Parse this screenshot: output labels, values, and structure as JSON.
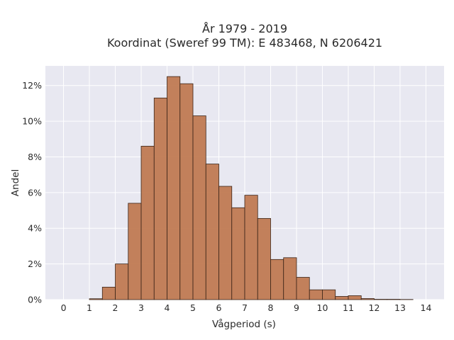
{
  "chart_data": {
    "type": "bar",
    "title_line1": "År 1979 - 2019",
    "title_line2": "Koordinat (Sweref 99 TM): E 483468, N 6206421",
    "xlabel": "Vågperiod (s)",
    "ylabel": "Andel",
    "bin_width": 0.5,
    "xlim": [
      -0.7,
      14.7
    ],
    "ylim": [
      0,
      13.1
    ],
    "x_ticks": [
      0,
      1,
      2,
      3,
      4,
      5,
      6,
      7,
      8,
      9,
      10,
      11,
      12,
      13,
      14
    ],
    "y_ticks": [
      0,
      2,
      4,
      6,
      8,
      10,
      12
    ],
    "y_tick_labels": [
      "0%",
      "2%",
      "4%",
      "6%",
      "8%",
      "10%",
      "12%"
    ],
    "grid": true,
    "bar_color": "#c07a52",
    "bar_edge_color": "#3a2418",
    "plot_background": "#e8e8f1",
    "bins": [
      {
        "x_start": 1.0,
        "value": 0.05
      },
      {
        "x_start": 1.5,
        "value": 0.7
      },
      {
        "x_start": 2.0,
        "value": 2.0
      },
      {
        "x_start": 2.5,
        "value": 5.4
      },
      {
        "x_start": 3.0,
        "value": 8.6
      },
      {
        "x_start": 3.5,
        "value": 11.3
      },
      {
        "x_start": 4.0,
        "value": 12.5
      },
      {
        "x_start": 4.5,
        "value": 12.1
      },
      {
        "x_start": 5.0,
        "value": 10.3
      },
      {
        "x_start": 5.5,
        "value": 7.6
      },
      {
        "x_start": 6.0,
        "value": 6.35
      },
      {
        "x_start": 6.5,
        "value": 5.15
      },
      {
        "x_start": 7.0,
        "value": 5.85
      },
      {
        "x_start": 7.5,
        "value": 4.55
      },
      {
        "x_start": 8.0,
        "value": 2.25
      },
      {
        "x_start": 8.5,
        "value": 2.35
      },
      {
        "x_start": 9.0,
        "value": 1.25
      },
      {
        "x_start": 9.5,
        "value": 0.55
      },
      {
        "x_start": 10.0,
        "value": 0.55
      },
      {
        "x_start": 10.5,
        "value": 0.18
      },
      {
        "x_start": 11.0,
        "value": 0.22
      },
      {
        "x_start": 11.5,
        "value": 0.06
      },
      {
        "x_start": 12.0,
        "value": 0.02
      },
      {
        "x_start": 12.5,
        "value": 0.02
      },
      {
        "x_start": 13.0,
        "value": 0.01
      }
    ]
  }
}
